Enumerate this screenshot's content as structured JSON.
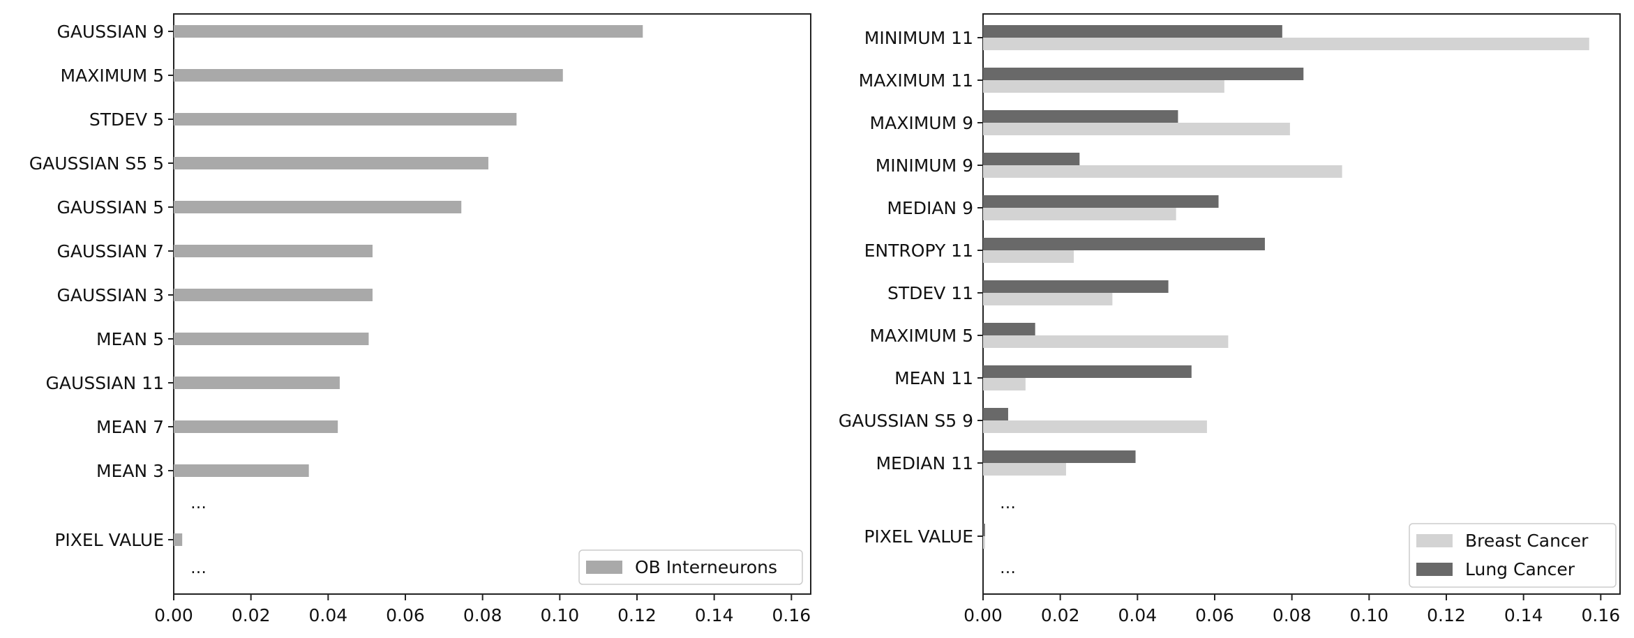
{
  "chart_data": [
    {
      "type": "bar",
      "orientation": "horizontal",
      "xlim": [
        0,
        0.165
      ],
      "xticks": [
        "0.00",
        "0.02",
        "0.04",
        "0.06",
        "0.08",
        "0.10",
        "0.12",
        "0.14",
        "0.16"
      ],
      "xtick_values": [
        0,
        0.02,
        0.04,
        0.06,
        0.08,
        0.1,
        0.12,
        0.14,
        0.16
      ],
      "categories": [
        "GAUSSIAN 9",
        "MAXIMUM 5",
        "STDEV 5",
        "GAUSSIAN S5 5",
        "GAUSSIAN 5",
        "GAUSSIAN 7",
        "GAUSSIAN 3",
        "MEAN 5",
        "GAUSSIAN 11",
        "MEAN 7",
        "MEAN 3",
        "...",
        "PIXEL VALUE",
        "..."
      ],
      "series": [
        {
          "name": "OB Interneurons",
          "color": "#a9a9a9",
          "values": [
            0.1215,
            0.1008,
            0.0888,
            0.0815,
            0.0745,
            0.0515,
            0.0515,
            0.0505,
            0.043,
            0.0425,
            0.035,
            null,
            0.0022,
            null
          ]
        }
      ],
      "legend": {
        "position": "lower-right"
      },
      "grid": false
    },
    {
      "type": "bar",
      "orientation": "horizontal",
      "xlim": [
        0,
        0.165
      ],
      "xticks": [
        "0.00",
        "0.02",
        "0.04",
        "0.06",
        "0.08",
        "0.10",
        "0.12",
        "0.14",
        "0.16"
      ],
      "xtick_values": [
        0,
        0.02,
        0.04,
        0.06,
        0.08,
        0.1,
        0.12,
        0.14,
        0.16
      ],
      "categories": [
        "MINIMUM 11",
        "MAXIMUM 11",
        "MAXIMUM 9",
        "MINIMUM 9",
        "MEDIAN 9",
        "ENTROPY 11",
        "STDEV 11",
        "MAXIMUM 5",
        "MEAN 11",
        "GAUSSIAN S5 9",
        "MEDIAN 11",
        "...",
        "PIXEL VALUE",
        "..."
      ],
      "series": [
        {
          "name": "Breast Cancer",
          "color": "#d3d3d3",
          "values": [
            0.157,
            0.0625,
            0.0795,
            0.093,
            0.05,
            0.0235,
            0.0335,
            0.0635,
            0.011,
            0.058,
            0.0215,
            null,
            0.0005,
            null
          ]
        },
        {
          "name": "Lung Cancer",
          "color": "#696969",
          "values": [
            0.0775,
            0.083,
            0.0505,
            0.025,
            0.061,
            0.073,
            0.048,
            0.0135,
            0.054,
            0.0065,
            0.0395,
            null,
            0.0005,
            null
          ]
        }
      ],
      "legend": {
        "position": "lower-right"
      },
      "grid": false
    }
  ]
}
